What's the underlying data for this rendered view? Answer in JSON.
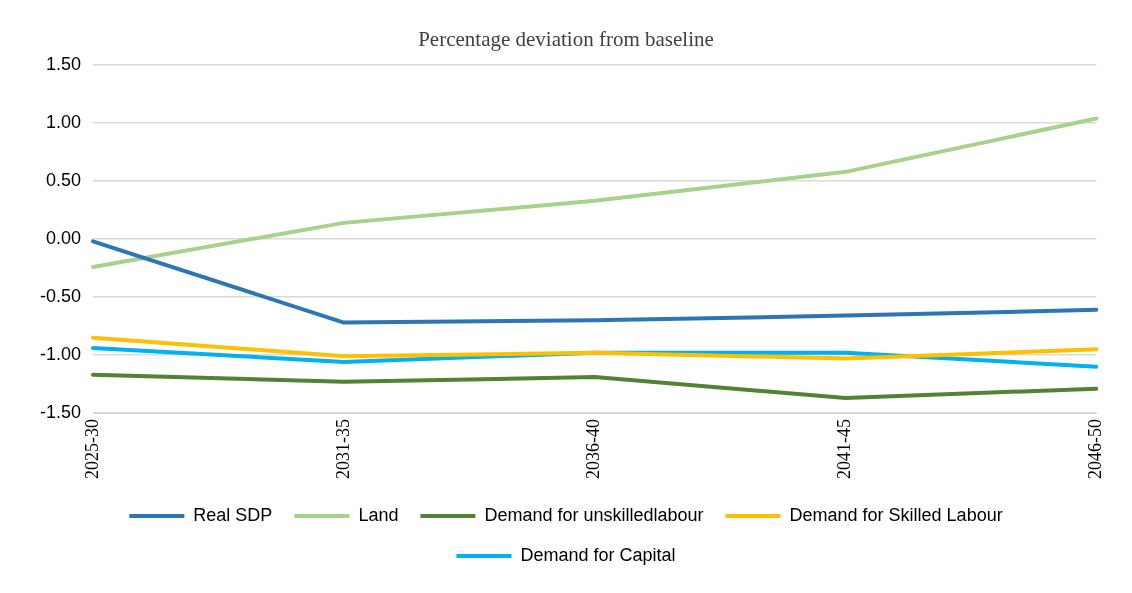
{
  "chart_data": {
    "type": "line",
    "title": "Percentage deviation from baseline",
    "categories": [
      "2025-30",
      "2031-35",
      "2036-40",
      "2041-45",
      "2046-50"
    ],
    "series": [
      {
        "name": "Real SDP",
        "color": "#2e75b6",
        "values": [
          -0.02,
          -0.72,
          -0.7,
          -0.66,
          -0.61
        ]
      },
      {
        "name": "Land",
        "color": "#a9d18e",
        "values": [
          -0.24,
          0.14,
          0.33,
          0.58,
          1.04
        ]
      },
      {
        "name": "Demand for unskilledlabour",
        "color": "#548235",
        "values": [
          -1.17,
          -1.23,
          -1.19,
          -1.37,
          -1.29
        ]
      },
      {
        "name": "Demand for Skilled Labour",
        "color": "#ffc000",
        "values": [
          -0.85,
          -1.01,
          -0.98,
          -1.03,
          -0.95
        ]
      },
      {
        "name": "Demand for Capital",
        "color": "#00b0f0",
        "values": [
          -0.94,
          -1.06,
          -0.98,
          -0.98,
          -1.1
        ]
      }
    ],
    "ylim": [
      -1.5,
      1.5
    ],
    "yticks": [
      {
        "value": -1.5,
        "label": "-1.50"
      },
      {
        "value": -1,
        "label": "-1.00"
      },
      {
        "value": -0.5,
        "label": "-0.50"
      },
      {
        "value": 0,
        "label": "0.00"
      },
      {
        "value": 0.5,
        "label": "0.50"
      },
      {
        "value": 1,
        "label": "1.00"
      },
      {
        "value": 1.5,
        "label": "1.50"
      }
    ],
    "grid": "y",
    "legend": "bottom",
    "marker": "none",
    "line_style": "solid"
  }
}
